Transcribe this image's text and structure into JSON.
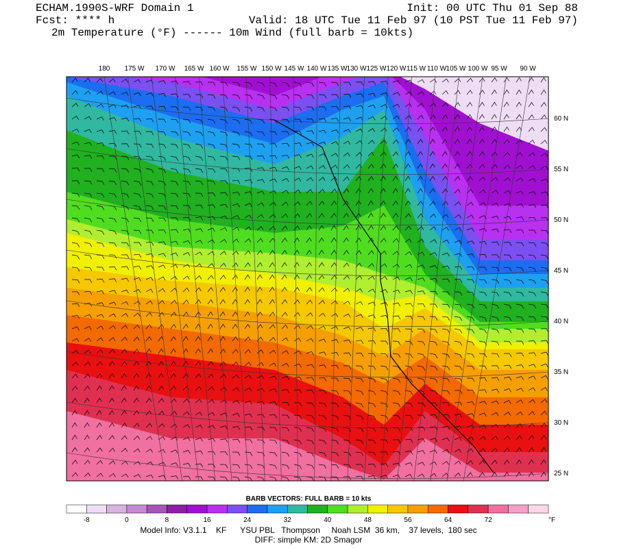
{
  "header": {
    "title": "ECHAM.1990S-WRF Domain 1",
    "init": "Init: 00 UTC Thu 01 Sep 88",
    "fcst": "Fcst: **** h",
    "valid": "Valid: 18 UTC Tue 11 Feb 97 (10 PST Tue 11 Feb 97)",
    "fields": "2m Temperature (°F) ------ 10m Wind (full barb = 10kts)"
  },
  "map": {
    "lon_labels": [
      "180",
      "175 W",
      "170 W",
      "165 W",
      "160 W",
      "155 W",
      "150 W",
      "145 W",
      "140 W",
      "135 W",
      "130 W",
      "125 W",
      "120 W",
      "115 W",
      "110 W",
      "105 W",
      "100 W",
      "95 W",
      "90 W"
    ],
    "lat_labels": [
      "60 N",
      "55 N",
      "50 N",
      "45 N",
      "40 N",
      "35 N",
      "30 N",
      "25 N"
    ]
  },
  "colorbar": {
    "title": "BARB VECTORS:  FULL BARB = 10 kts",
    "labels": [
      "-8",
      "0",
      "8",
      "16",
      "24",
      "32",
      "40",
      "48",
      "56",
      "64",
      "72"
    ],
    "unit": "°F",
    "colors": [
      "#ffffff",
      "#eeddf5",
      "#d9b2e0",
      "#c58ad0",
      "#a855b8",
      "#8e1ea6",
      "#a010d0",
      "#b830f0",
      "#7a50f0",
      "#1c6df0",
      "#1ea0f0",
      "#30b8a0",
      "#20b020",
      "#50dd20",
      "#b0ee30",
      "#f0f000",
      "#f5c800",
      "#f5a000",
      "#f26a00",
      "#e81010",
      "#e03050",
      "#f070a0",
      "#f5a0c8",
      "#fcd8ea"
    ]
  },
  "footer": {
    "line1": "Model Info: V3.1.1    KF      YSU PBL   Thompson     Noah LSM  36 km,    37 levels,  180 sec",
    "line2": "DIFF: simple KM: 2D Smagor"
  }
}
